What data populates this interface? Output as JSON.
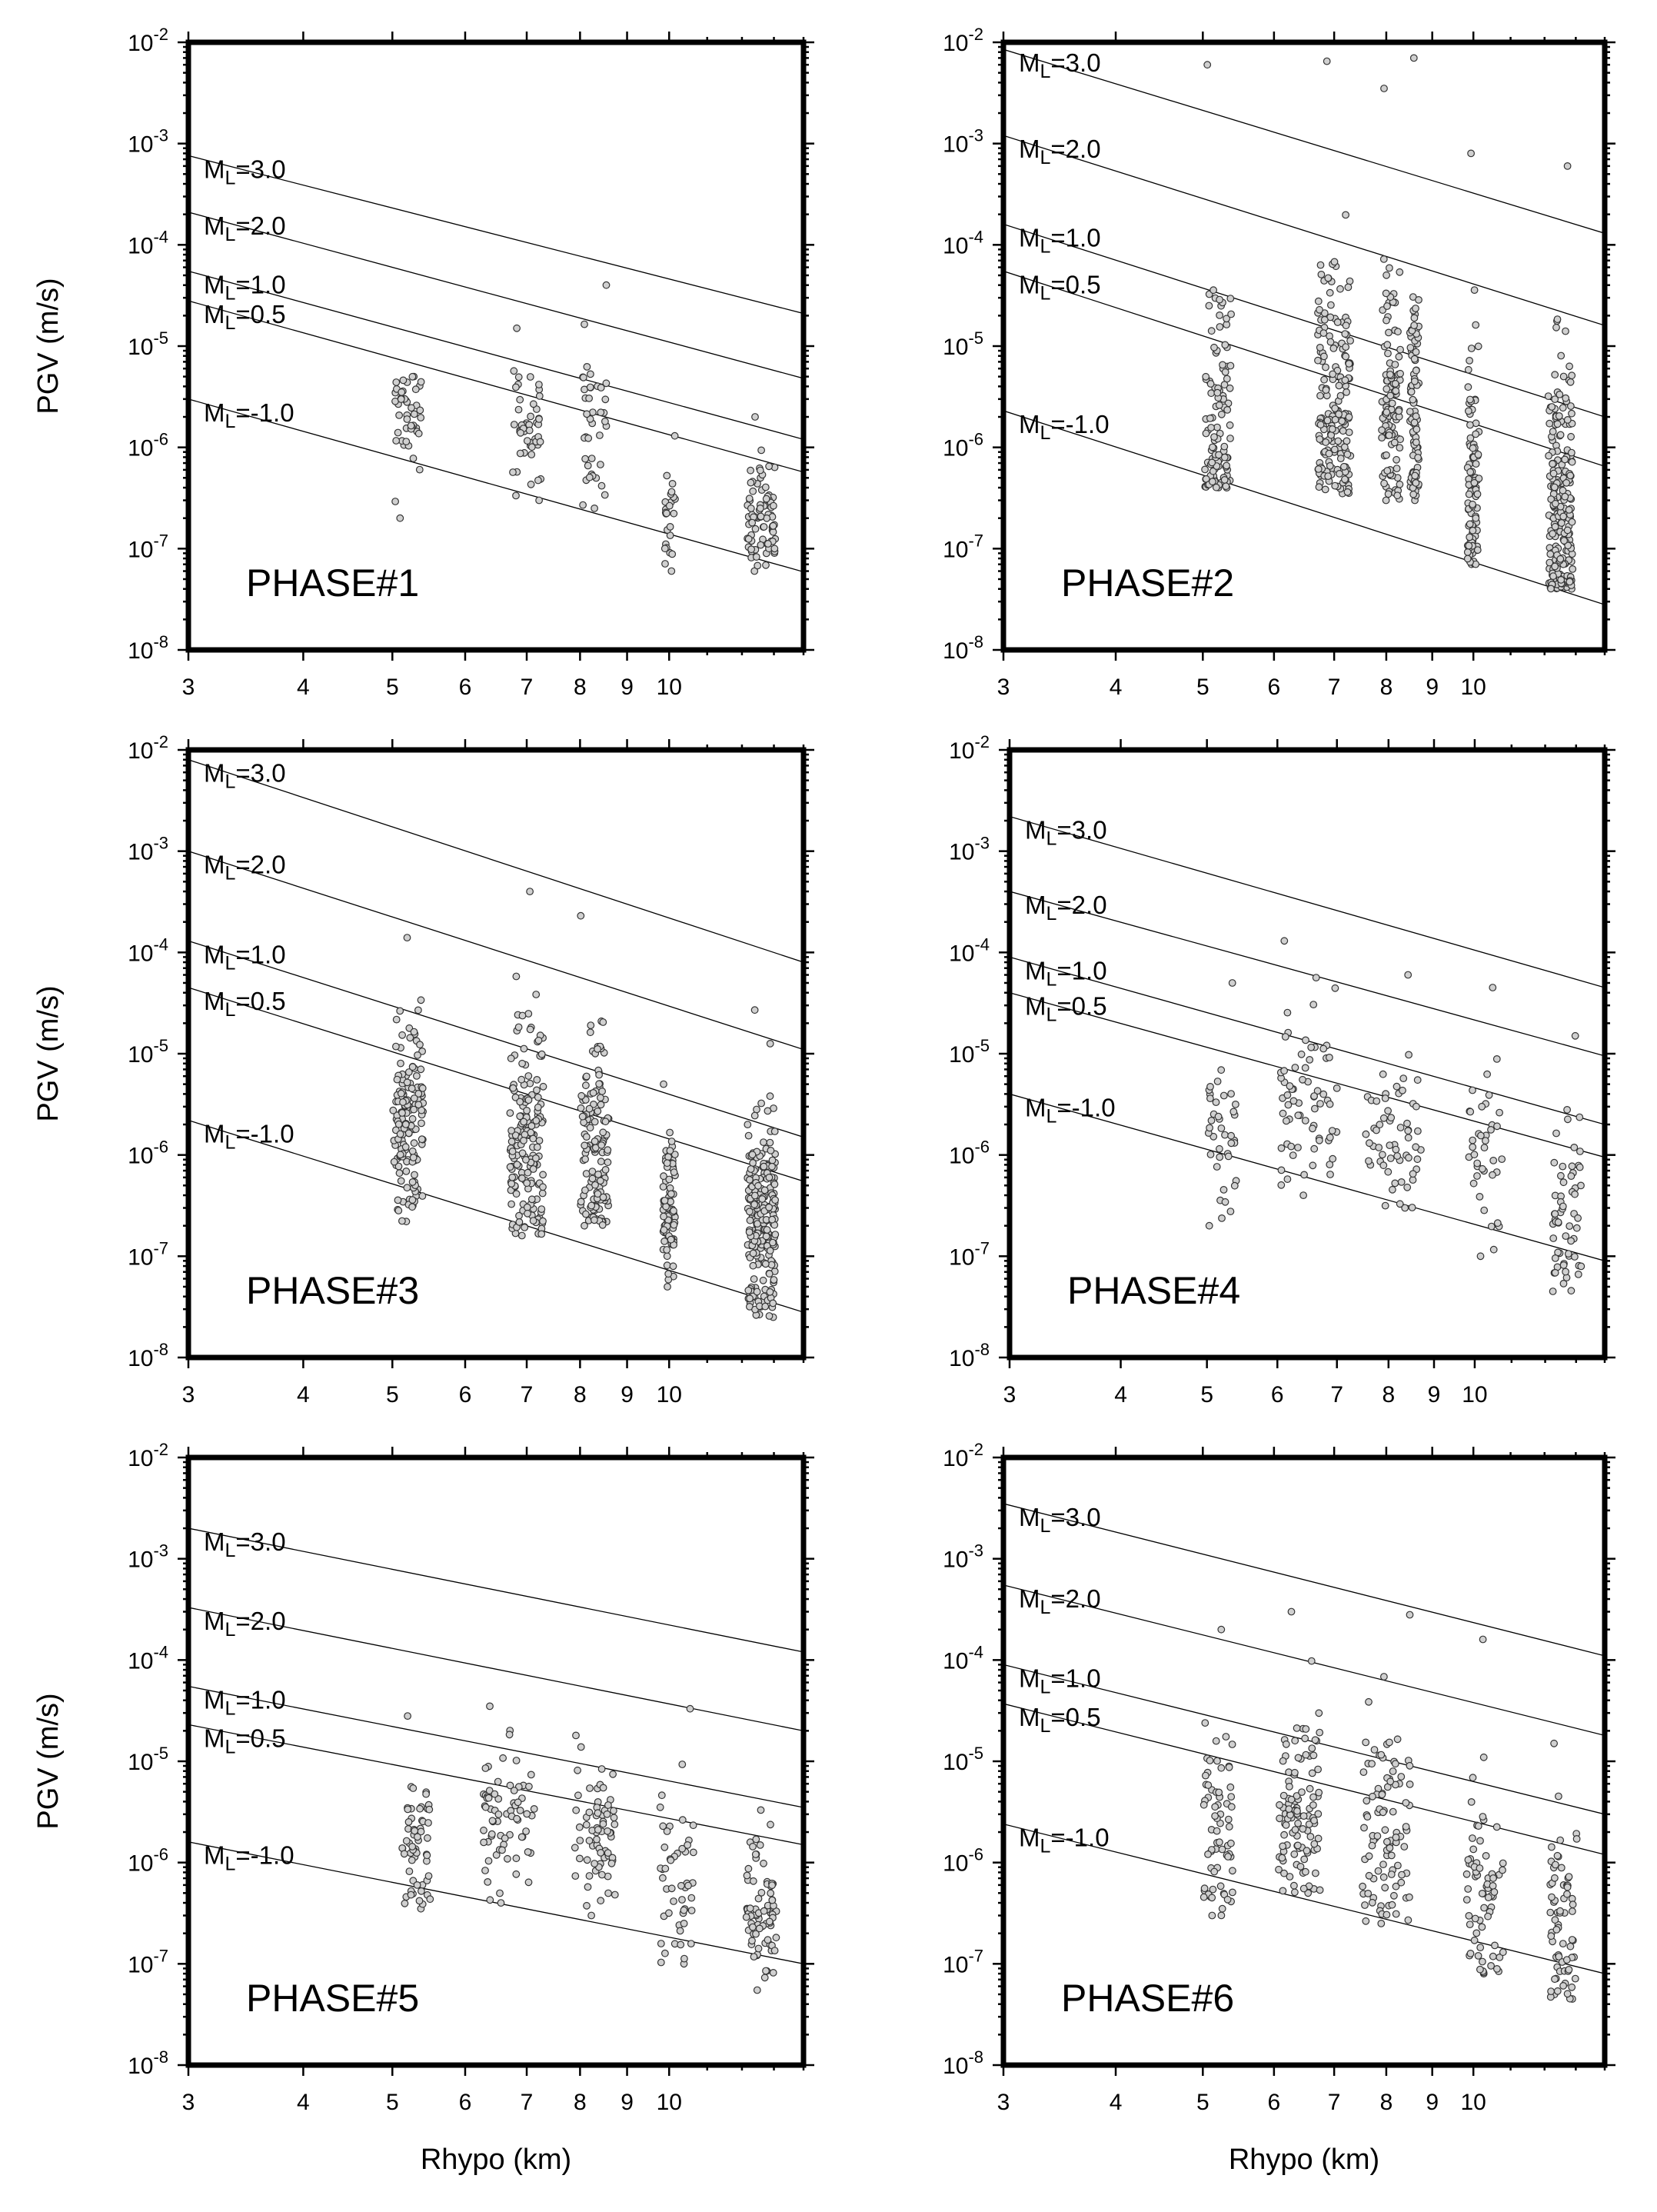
{
  "chart_data": [
    {
      "type": "scatter",
      "title": "PHASE#1",
      "xlabel": "",
      "ylabel": "PGV (m/s)",
      "xscale": "log",
      "yscale": "log",
      "xlim": [
        3,
        14
      ],
      "ylim": [
        1e-08,
        0.01
      ],
      "x_ticks": [
        "3",
        "4",
        "5",
        "6",
        "7",
        "8",
        "9",
        "10"
      ],
      "y_ticks": [
        "10-8",
        "10-7",
        "10-6",
        "10-5",
        "10-4",
        "10-3",
        "10-2"
      ],
      "lines": [
        {
          "label": "ML=3.0",
          "mag": "3.0",
          "y_at_3": 0.00076,
          "y_at_14": 2.1e-05
        },
        {
          "label": "ML=2.0",
          "mag": "2.0",
          "y_at_3": 0.00021,
          "y_at_14": 4.8e-06
        },
        {
          "label": "ML=1.0",
          "mag": "1.0",
          "y_at_3": 5.5e-05,
          "y_at_14": 1.2e-06
        },
        {
          "label": "ML=0.5",
          "mag": "0.5",
          "y_at_3": 2.8e-05,
          "y_at_14": 5.7e-07
        },
        {
          "label": "ML=-1.0",
          "mag": "-1.0",
          "y_at_3": 3e-06,
          "y_at_14": 5.9e-08
        }
      ],
      "clusters": [
        {
          "x": 5.2,
          "spread": 0.18,
          "ymin": 2e-07,
          "ymax": 5e-06,
          "center": 2e-06,
          "n": 45
        },
        {
          "x": 7.0,
          "spread": 0.25,
          "ymin": 3e-07,
          "ymax": 1.5e-05,
          "center": 1.5e-06,
          "n": 50
        },
        {
          "x": 8.3,
          "spread": 0.25,
          "ymin": 2.5e-07,
          "ymax": 4e-05,
          "center": 1.5e-06,
          "n": 40
        },
        {
          "x": 10.0,
          "spread": 0.15,
          "ymin": 6e-08,
          "ymax": 1.3e-06,
          "center": 2e-07,
          "n": 25
        },
        {
          "x": 12.6,
          "spread": 0.45,
          "ymin": 6e-08,
          "ymax": 2e-06,
          "center": 2e-07,
          "n": 80
        }
      ]
    },
    {
      "type": "scatter",
      "title": "PHASE#2",
      "xlabel": "",
      "ylabel": "",
      "xscale": "log",
      "yscale": "log",
      "xlim": [
        3,
        14
      ],
      "ylim": [
        1e-08,
        0.01
      ],
      "x_ticks": [
        "3",
        "4",
        "5",
        "6",
        "7",
        "8",
        "9",
        "10"
      ],
      "y_ticks": [
        "10-8",
        "10-7",
        "10-6",
        "10-5",
        "10-4",
        "10-3",
        "10-2"
      ],
      "lines": [
        {
          "label": "ML=3.0",
          "mag": "3.0",
          "y_at_3": 0.0085,
          "y_at_14": 0.00013
        },
        {
          "label": "ML=2.0",
          "mag": "2.0",
          "y_at_3": 0.0012,
          "y_at_14": 1.6e-05
        },
        {
          "label": "ML=1.0",
          "mag": "1.0",
          "y_at_3": 0.00016,
          "y_at_14": 2e-06
        },
        {
          "label": "ML=0.5",
          "mag": "0.5",
          "y_at_3": 5.5e-05,
          "y_at_14": 6.5e-07
        },
        {
          "label": "ML=-1.0",
          "mag": "-1.0",
          "y_at_3": 2.3e-06,
          "y_at_14": 2.8e-08
        }
      ],
      "clusters": [
        {
          "x": 5.2,
          "spread": 0.18,
          "ymin": 4e-07,
          "ymax": 0.006,
          "center": 2e-06,
          "n": 110
        },
        {
          "x": 7.0,
          "spread": 0.3,
          "ymin": 3.5e-07,
          "ymax": 0.0065,
          "center": 3e-06,
          "n": 180
        },
        {
          "x": 8.1,
          "spread": 0.2,
          "ymin": 3e-07,
          "ymax": 0.0035,
          "center": 2e-06,
          "n": 110
        },
        {
          "x": 8.6,
          "spread": 0.1,
          "ymin": 3e-07,
          "ymax": 0.007,
          "center": 2.5e-06,
          "n": 90
        },
        {
          "x": 10.0,
          "spread": 0.15,
          "ymin": 7e-08,
          "ymax": 0.0008,
          "center": 3e-07,
          "n": 100
        },
        {
          "x": 12.5,
          "spread": 0.4,
          "ymin": 4e-08,
          "ymax": 0.0006,
          "center": 2e-07,
          "n": 220
        }
      ]
    },
    {
      "type": "scatter",
      "title": "PHASE#3",
      "xlabel": "",
      "ylabel": "PGV (m/s)",
      "xscale": "log",
      "yscale": "log",
      "xlim": [
        3,
        14
      ],
      "ylim": [
        1e-08,
        0.01
      ],
      "x_ticks": [
        "3",
        "4",
        "5",
        "6",
        "7",
        "8",
        "9",
        "10"
      ],
      "y_ticks": [
        "10-8",
        "10-7",
        "10-6",
        "10-5",
        "10-4",
        "10-3",
        "10-2"
      ],
      "lines": [
        {
          "label": "ML=3.0",
          "mag": "3.0",
          "y_at_3": 0.008,
          "y_at_14": 8e-05
        },
        {
          "label": "ML=2.0",
          "mag": "2.0",
          "y_at_3": 0.001,
          "y_at_14": 1.1e-05
        },
        {
          "label": "ML=1.0",
          "mag": "1.0",
          "y_at_3": 0.00013,
          "y_at_14": 1.5e-06
        },
        {
          "label": "ML=0.5",
          "mag": "0.5",
          "y_at_3": 4.5e-05,
          "y_at_14": 5.5e-07
        },
        {
          "label": "ML=-1.0",
          "mag": "-1.0",
          "y_at_3": 2.2e-06,
          "y_at_14": 2.8e-08
        }
      ],
      "clusters": [
        {
          "x": 5.2,
          "spread": 0.2,
          "ymin": 2.2e-07,
          "ymax": 0.00014,
          "center": 2e-06,
          "n": 150
        },
        {
          "x": 7.0,
          "spread": 0.3,
          "ymin": 1.6e-07,
          "ymax": 0.0004,
          "center": 1.5e-06,
          "n": 170
        },
        {
          "x": 8.3,
          "spread": 0.3,
          "ymin": 2e-07,
          "ymax": 0.00023,
          "center": 1.2e-06,
          "n": 130
        },
        {
          "x": 10.0,
          "spread": 0.15,
          "ymin": 5e-08,
          "ymax": 5e-06,
          "center": 3e-07,
          "n": 90
        },
        {
          "x": 12.6,
          "spread": 0.45,
          "ymin": 2.5e-08,
          "ymax": 2.7e-05,
          "center": 2e-07,
          "n": 230
        }
      ]
    },
    {
      "type": "scatter",
      "title": "PHASE#4",
      "xlabel": "",
      "ylabel": "",
      "xscale": "log",
      "yscale": "log",
      "xlim": [
        3,
        14
      ],
      "ylim": [
        1e-08,
        0.01
      ],
      "x_ticks": [
        "3",
        "4",
        "5",
        "6",
        "7",
        "8",
        "9",
        "10"
      ],
      "y_ticks": [
        "10-8",
        "10-7",
        "10-6",
        "10-5",
        "10-4",
        "10-3",
        "10-2"
      ],
      "lines": [
        {
          "label": "ML=3.0",
          "mag": "3.0",
          "y_at_3": 0.0022,
          "y_at_14": 4.5e-05
        },
        {
          "label": "ML=2.0",
          "mag": "2.0",
          "y_at_3": 0.0004,
          "y_at_14": 9.5e-06
        },
        {
          "label": "ML=1.0",
          "mag": "1.0",
          "y_at_3": 9e-05,
          "y_at_14": 2e-06
        },
        {
          "label": "ML=0.5",
          "mag": "0.5",
          "y_at_3": 4e-05,
          "y_at_14": 9.5e-07
        },
        {
          "label": "ML=-1.0",
          "mag": "-1.0",
          "y_at_3": 4e-06,
          "y_at_14": 9e-08
        }
      ],
      "clusters": [
        {
          "x": 5.2,
          "spread": 0.2,
          "ymin": 2e-07,
          "ymax": 5e-05,
          "center": 1.5e-06,
          "n": 40
        },
        {
          "x": 6.5,
          "spread": 0.5,
          "ymin": 4e-07,
          "ymax": 0.00013,
          "center": 3e-06,
          "n": 70
        },
        {
          "x": 8.1,
          "spread": 0.6,
          "ymin": 3e-07,
          "ymax": 6e-05,
          "center": 1.5e-06,
          "n": 60
        },
        {
          "x": 10.3,
          "spread": 0.5,
          "ymin": 1e-07,
          "ymax": 4.5e-05,
          "center": 1e-06,
          "n": 40
        },
        {
          "x": 12.7,
          "spread": 0.5,
          "ymin": 4.5e-08,
          "ymax": 1.5e-05,
          "center": 2e-07,
          "n": 60
        }
      ]
    },
    {
      "type": "scatter",
      "title": "PHASE#5",
      "xlabel": "Rhypo (km)",
      "ylabel": "PGV (m/s)",
      "xscale": "log",
      "yscale": "log",
      "xlim": [
        3,
        14
      ],
      "ylim": [
        1e-08,
        0.01
      ],
      "x_ticks": [
        "3",
        "4",
        "5",
        "6",
        "7",
        "8",
        "9",
        "10"
      ],
      "y_ticks": [
        "10-8",
        "10-7",
        "10-6",
        "10-5",
        "10-4",
        "10-3",
        "10-2"
      ],
      "lines": [
        {
          "label": "ML=3.0",
          "mag": "3.0",
          "y_at_3": 0.002,
          "y_at_14": 0.00012
        },
        {
          "label": "ML=2.0",
          "mag": "2.0",
          "y_at_3": 0.00033,
          "y_at_14": 2e-05
        },
        {
          "label": "ML=1.0",
          "mag": "1.0",
          "y_at_3": 5.5e-05,
          "y_at_14": 3.5e-06
        },
        {
          "label": "ML=0.5",
          "mag": "0.5",
          "y_at_3": 2.3e-05,
          "y_at_14": 1.5e-06
        },
        {
          "label": "ML=-1.0",
          "mag": "-1.0",
          "y_at_3": 1.6e-06,
          "y_at_14": 1e-07
        }
      ],
      "clusters": [
        {
          "x": 5.3,
          "spread": 0.2,
          "ymin": 3.5e-07,
          "ymax": 2.8e-05,
          "center": 1.5e-06,
          "n": 60
        },
        {
          "x": 6.7,
          "spread": 0.45,
          "ymin": 4e-07,
          "ymax": 3.5e-05,
          "center": 3e-06,
          "n": 70
        },
        {
          "x": 8.3,
          "spread": 0.45,
          "ymin": 3e-07,
          "ymax": 1.8e-05,
          "center": 2e-06,
          "n": 70
        },
        {
          "x": 10.2,
          "spread": 0.45,
          "ymin": 1e-07,
          "ymax": 3.3e-05,
          "center": 6e-07,
          "n": 50
        },
        {
          "x": 12.6,
          "spread": 0.5,
          "ymin": 5.5e-08,
          "ymax": 3.3e-06,
          "center": 3e-07,
          "n": 80
        }
      ]
    },
    {
      "type": "scatter",
      "title": "PHASE#6",
      "xlabel": "Rhypo (km)",
      "ylabel": "",
      "xscale": "log",
      "yscale": "log",
      "xlim": [
        3,
        14
      ],
      "ylim": [
        1e-08,
        0.01
      ],
      "x_ticks": [
        "3",
        "4",
        "5",
        "6",
        "7",
        "8",
        "9",
        "10"
      ],
      "y_ticks": [
        "10-8",
        "10-7",
        "10-6",
        "10-5",
        "10-4",
        "10-3",
        "10-2"
      ],
      "lines": [
        {
          "label": "ML=3.0",
          "mag": "3.0",
          "y_at_3": 0.0035,
          "y_at_14": 0.00011
        },
        {
          "label": "ML=2.0",
          "mag": "2.0",
          "y_at_3": 0.00055,
          "y_at_14": 1.8e-05
        },
        {
          "label": "ML=1.0",
          "mag": "1.0",
          "y_at_3": 9e-05,
          "y_at_14": 3e-06
        },
        {
          "label": "ML=0.5",
          "mag": "0.5",
          "y_at_3": 3.7e-05,
          "y_at_14": 1.2e-06
        },
        {
          "label": "ML=-1.0",
          "mag": "-1.0",
          "y_at_3": 2.4e-06,
          "y_at_14": 8e-08
        }
      ],
      "clusters": [
        {
          "x": 5.2,
          "spread": 0.2,
          "ymin": 3e-07,
          "ymax": 0.0002,
          "center": 2e-06,
          "n": 70
        },
        {
          "x": 6.4,
          "spread": 0.35,
          "ymin": 5e-07,
          "ymax": 0.0003,
          "center": 3e-06,
          "n": 110
        },
        {
          "x": 8.0,
          "spread": 0.5,
          "ymin": 2.5e-07,
          "ymax": 0.00028,
          "center": 2e-06,
          "n": 100
        },
        {
          "x": 10.3,
          "spread": 0.5,
          "ymin": 8e-08,
          "ymax": 0.00016,
          "center": 6e-07,
          "n": 70
        },
        {
          "x": 12.6,
          "spread": 0.45,
          "ymin": 4.5e-08,
          "ymax": 1.5e-05,
          "center": 2.5e-07,
          "n": 70
        }
      ]
    }
  ]
}
